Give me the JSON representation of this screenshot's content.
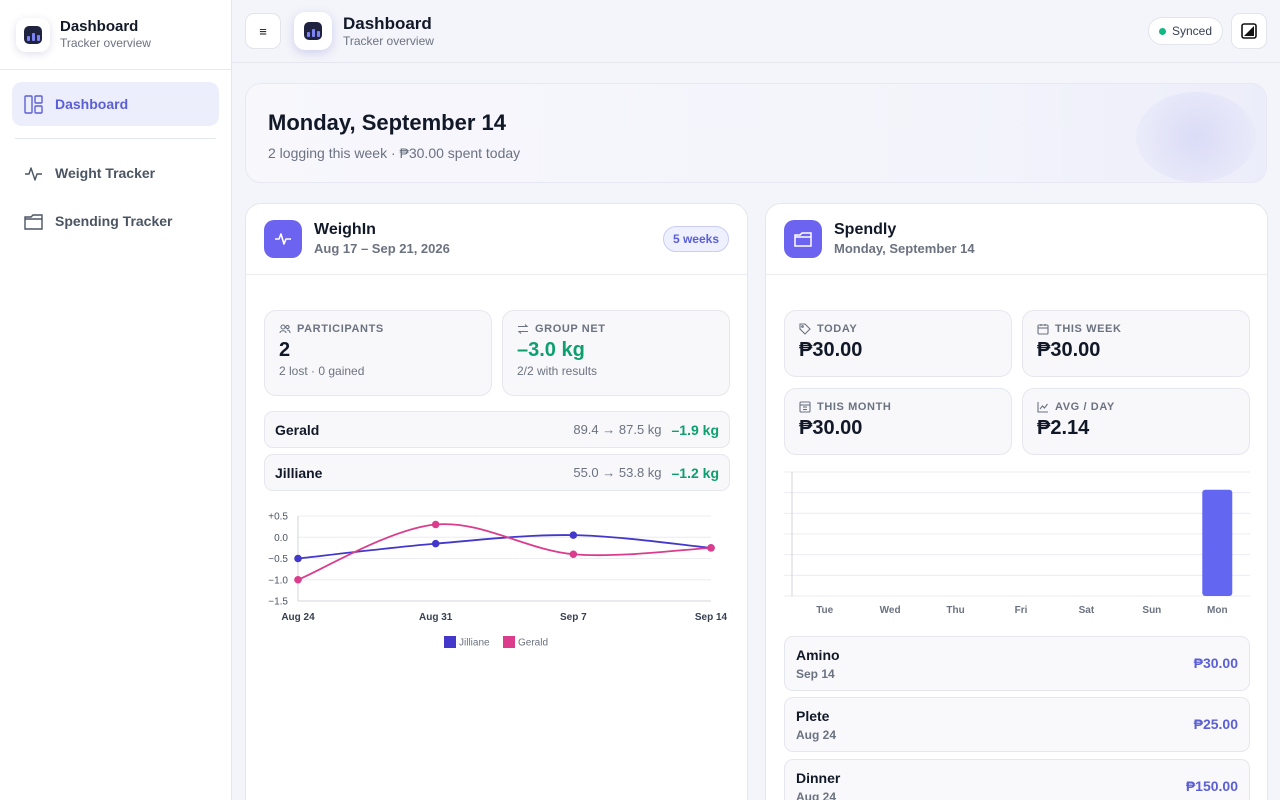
{
  "sidebar": {
    "brand_title": "Dashboard",
    "brand_sub": "Tracker overview",
    "items": [
      {
        "label": "Dashboard",
        "icon": "layout-icon",
        "active": true
      },
      {
        "label": "Weight Tracker",
        "icon": "pulse-icon",
        "active": false
      },
      {
        "label": "Spending Tracker",
        "icon": "folder-icon",
        "active": false
      }
    ]
  },
  "topbar": {
    "menu_glyph": "≡",
    "title": "Dashboard",
    "subtitle": "Tracker overview",
    "status": "Synced",
    "status_color": "#10b981"
  },
  "hero": {
    "date": "Monday, September 14",
    "summary": "2 logging this week · ₱30.00 spent today"
  },
  "weighin": {
    "title": "WeighIn",
    "range": "Aug 17 – Sep 21, 2026",
    "badge": "5 weeks",
    "stats": {
      "participants_label": "Participants",
      "participants_value": "2",
      "participants_sub": "2 lost · 0 gained",
      "net_label": "Group Net",
      "net_value": "–3.0 kg",
      "net_sub": "2/2 with results"
    },
    "people": [
      {
        "name": "Gerald",
        "range": "89.4 → 87.5 kg",
        "delta": "–1.9 kg"
      },
      {
        "name": "Jilliane",
        "range": "55.0 → 53.8 kg",
        "delta": "–1.2 kg"
      }
    ]
  },
  "spendly": {
    "title": "Spendly",
    "date": "Monday, September 14",
    "stats": [
      {
        "label": "Today",
        "value": "₱30.00",
        "icon": "tag-icon"
      },
      {
        "label": "This Week",
        "value": "₱30.00",
        "icon": "calendar-icon"
      },
      {
        "label": "This Month",
        "value": "₱30.00",
        "icon": "calendar-grid-icon"
      },
      {
        "label": "Avg / Day",
        "value": "₱2.14",
        "icon": "trend-icon"
      }
    ],
    "expenses": [
      {
        "name": "Amino",
        "date": "Sep 14",
        "amount": "₱30.00"
      },
      {
        "name": "Plete",
        "date": "Aug 24",
        "amount": "₱25.00"
      },
      {
        "name": "Dinner",
        "date": "Aug 24",
        "amount": "₱150.00"
      }
    ]
  },
  "chart_data": [
    {
      "type": "line",
      "x": [
        "Aug 24",
        "Aug 31",
        "Sep 7",
        "Sep 14"
      ],
      "y_ticks": [
        "+0.5",
        "0.0",
        "−0.5",
        "−1.0",
        "−1.5"
      ],
      "ylim": [
        -1.5,
        0.5
      ],
      "grid": true,
      "legend_position": "bottom",
      "series": [
        {
          "name": "Jilliane",
          "color": "#4338ca",
          "values": [
            -0.5,
            -0.15,
            0.05,
            -0.25
          ]
        },
        {
          "name": "Gerald",
          "color": "#db3c8c",
          "values": [
            -1.0,
            0.3,
            -0.4,
            -0.25
          ]
        }
      ]
    },
    {
      "type": "bar",
      "categories": [
        "Tue",
        "Wed",
        "Thu",
        "Fri",
        "Sat",
        "Sun",
        "Mon"
      ],
      "values": [
        0,
        0,
        0,
        0,
        0,
        0,
        30
      ],
      "ylim": [
        0,
        35
      ],
      "grid": true,
      "color": "#6366f1"
    }
  ]
}
